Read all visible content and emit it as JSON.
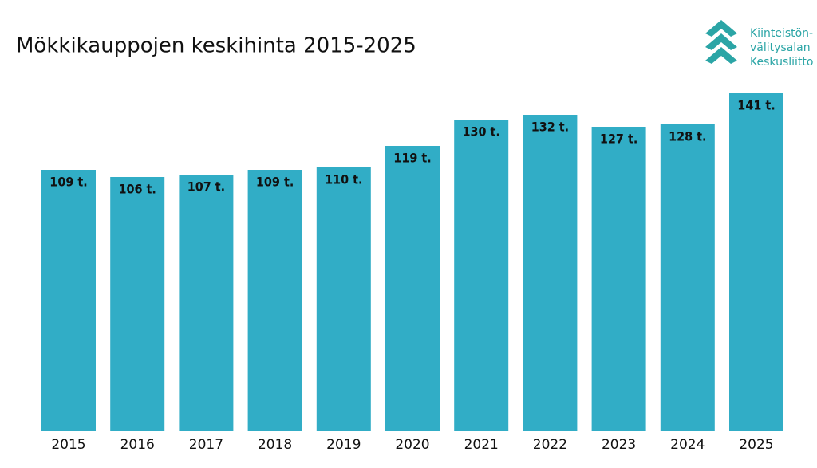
{
  "chart_data": {
    "type": "bar",
    "title": "Mökkikauppojen keskihinta 2015-2025",
    "categories": [
      "2015",
      "2016",
      "2017",
      "2018",
      "2019",
      "2020",
      "2021",
      "2022",
      "2023",
      "2024",
      "2025"
    ],
    "values": [
      109,
      106,
      107,
      109,
      110,
      119,
      130,
      132,
      127,
      128,
      141
    ],
    "value_labels": [
      "109 t.",
      "106 t.",
      "107 t.",
      "109 t.",
      "110 t.",
      "119 t.",
      "130 t.",
      "132 t.",
      "127 t.",
      "128 t.",
      "141 t."
    ],
    "color": "#31adc6"
  },
  "logo": {
    "lines": [
      "Kiinteistön-",
      "välitysalan",
      "Keskusliitto"
    ],
    "color": "#2ba5a6"
  }
}
